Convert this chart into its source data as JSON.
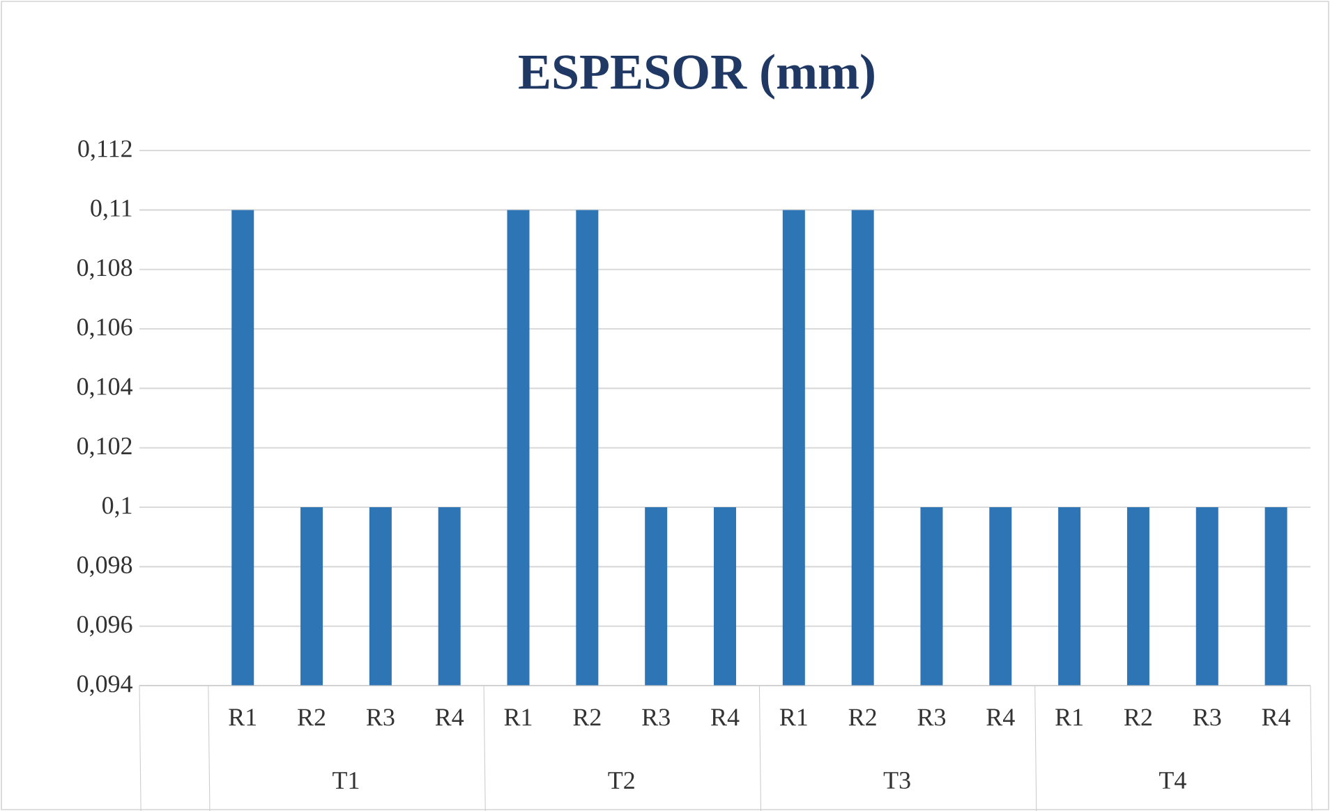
{
  "chart_data": {
    "type": "bar",
    "title": "ESPESOR (mm)",
    "categories": [
      null,
      "R1",
      "R2",
      "R3",
      "R4",
      "R1",
      "R2",
      "R3",
      "R4",
      "R1",
      "R2",
      "R3",
      "R4",
      "R1",
      "R2",
      "R3",
      "R4"
    ],
    "values": [
      null,
      0.11,
      0.1,
      0.1,
      0.1,
      0.11,
      0.11,
      0.1,
      0.1,
      0.11,
      0.11,
      0.1,
      0.1,
      0.1,
      0.1,
      0.1,
      0.1
    ],
    "color": "#2e75b6",
    "ylim": [
      0.094,
      0.112
    ],
    "yticks": [
      {
        "value": 0.094,
        "label": "0,094"
      },
      {
        "value": 0.096,
        "label": "0,096"
      },
      {
        "value": 0.098,
        "label": "0,098"
      },
      {
        "value": 0.1,
        "label": "0,1"
      },
      {
        "value": 0.102,
        "label": "0,102"
      },
      {
        "value": 0.104,
        "label": "0,104"
      },
      {
        "value": 0.106,
        "label": "0,106"
      },
      {
        "value": 0.108,
        "label": "0,108"
      },
      {
        "value": 0.11,
        "label": "0,11"
      },
      {
        "value": 0.112,
        "label": "0,112"
      }
    ],
    "grid": "y",
    "annotations": [
      "T1",
      "T2",
      "T3",
      "T4"
    ]
  }
}
